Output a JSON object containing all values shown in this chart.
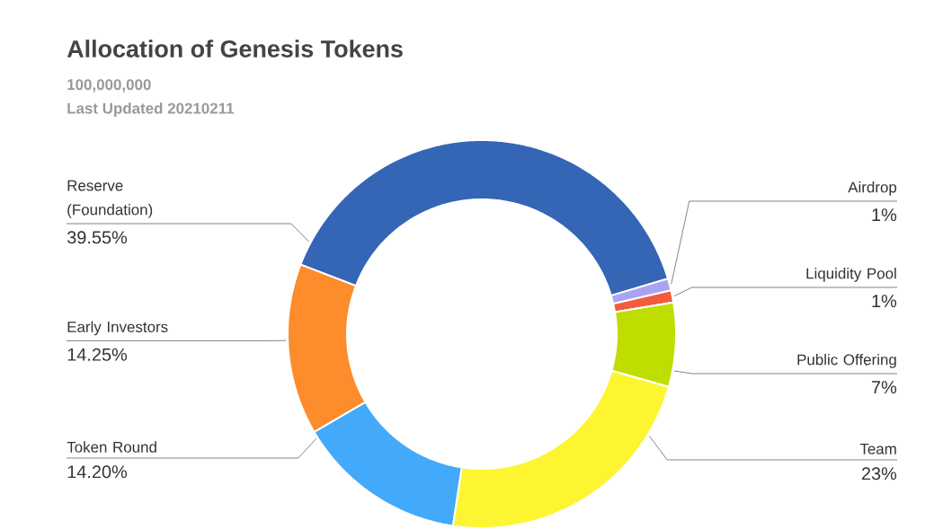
{
  "chart_data": {
    "type": "donut",
    "title": "Allocation of Genesis Tokens",
    "subtitle": "100,000,000",
    "annotations": [
      "Last Updated 20210211"
    ],
    "categories": [
      "Reserve (Foundation)",
      "Airdrop",
      "Liquidity Pool",
      "Public Offering",
      "Team",
      "Token Round",
      "Early Investors"
    ],
    "values": [
      39.55,
      1,
      1,
      7,
      23,
      14.2,
      14.25
    ],
    "value_labels": [
      "39.55%",
      "1%",
      "1%",
      "7%",
      "23%",
      "14.20%",
      "14.25%"
    ],
    "colors": [
      "#3565b5",
      "#a9a3f0",
      "#f25c3c",
      "#c0dd00",
      "#fdf531",
      "#42a9fb",
      "#fc8c2c"
    ]
  }
}
